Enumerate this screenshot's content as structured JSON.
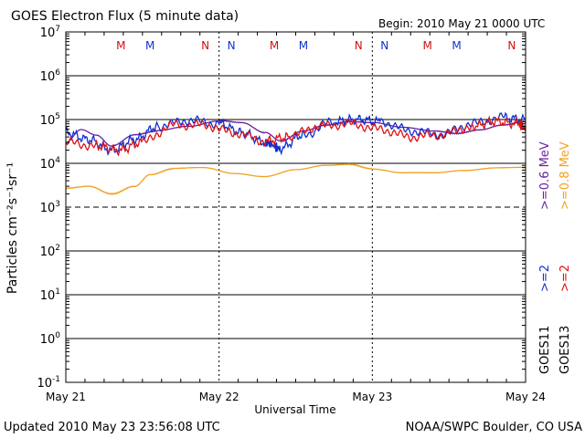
{
  "chart_data": {
    "type": "line",
    "title": "GOES Electron Flux (5 minute data)",
    "begin_label": "Begin: 2010 May 21 0000 UTC",
    "xlabel": "Universal Time",
    "ylabel": "Particles cm⁻²s⁻¹sr⁻¹",
    "yscale": "log",
    "ylim": [
      0.1,
      10000000
    ],
    "xlim_days": [
      0,
      3
    ],
    "x_ticks": [
      {
        "day": 0,
        "label": "May 21"
      },
      {
        "day": 1,
        "label": "May 22"
      },
      {
        "day": 2,
        "label": "May 23"
      },
      {
        "day": 3,
        "label": "May 24"
      }
    ],
    "y_ticks": [
      {
        "exp": 7,
        "base": "10",
        "sup": "7"
      },
      {
        "exp": 6,
        "base": "10",
        "sup": "6"
      },
      {
        "exp": 5,
        "base": "10",
        "sup": "5"
      },
      {
        "exp": 4,
        "base": "10",
        "sup": "4"
      },
      {
        "exp": 3,
        "base": "10",
        "sup": "3"
      },
      {
        "exp": 2,
        "base": "10",
        "sup": "2"
      },
      {
        "exp": 1,
        "base": "10",
        "sup": "1"
      },
      {
        "exp": 0,
        "base": "10",
        "sup": "0"
      },
      {
        "exp": -1,
        "base": "10",
        "sup": "-1"
      }
    ],
    "markers": [
      {
        "day": 0.36,
        "label": "M",
        "color": "#d01010"
      },
      {
        "day": 0.55,
        "label": "M",
        "color": "#1030d0"
      },
      {
        "day": 0.91,
        "label": "N",
        "color": "#d01010"
      },
      {
        "day": 1.08,
        "label": "N",
        "color": "#1030d0"
      },
      {
        "day": 1.36,
        "label": "M",
        "color": "#d01010"
      },
      {
        "day": 1.55,
        "label": "M",
        "color": "#1030d0"
      },
      {
        "day": 1.91,
        "label": "N",
        "color": "#d01010"
      },
      {
        "day": 2.08,
        "label": "N",
        "color": "#1030d0"
      },
      {
        "day": 2.36,
        "label": "M",
        "color": "#d01010"
      },
      {
        "day": 2.55,
        "label": "M",
        "color": "#1030d0"
      },
      {
        "day": 2.91,
        "label": "N",
        "color": "#d01010"
      },
      {
        "day": 3.08,
        "label": "N",
        "color": "#1030d0"
      }
    ],
    "series": [
      {
        "name": "GOES11 >=0.6 MeV",
        "color": "#6a1fa0",
        "points": [
          [
            0,
            30000
          ],
          [
            0.1,
            60000
          ],
          [
            0.2,
            45000
          ],
          [
            0.3,
            25000
          ],
          [
            0.45,
            45000
          ],
          [
            0.6,
            55000
          ],
          [
            0.8,
            70000
          ],
          [
            1.0,
            95000
          ],
          [
            1.15,
            85000
          ],
          [
            1.3,
            50000
          ],
          [
            1.4,
            32000
          ],
          [
            1.55,
            55000
          ],
          [
            1.7,
            75000
          ],
          [
            1.85,
            90000
          ],
          [
            2.0,
            85000
          ],
          [
            2.2,
            65000
          ],
          [
            2.4,
            55000
          ],
          [
            2.55,
            48000
          ],
          [
            2.7,
            58000
          ],
          [
            2.85,
            75000
          ],
          [
            3.0,
            90000
          ]
        ]
      },
      {
        "name": "GOES13 >=0.8 MeV",
        "color": "#f0a020",
        "points": [
          [
            0,
            2700
          ],
          [
            0.15,
            3000
          ],
          [
            0.3,
            2000
          ],
          [
            0.45,
            3000
          ],
          [
            0.55,
            5500
          ],
          [
            0.7,
            7500
          ],
          [
            0.9,
            8000
          ],
          [
            1.1,
            6000
          ],
          [
            1.3,
            5000
          ],
          [
            1.5,
            7000
          ],
          [
            1.7,
            9000
          ],
          [
            1.85,
            9500
          ],
          [
            2.0,
            7500
          ],
          [
            2.2,
            6000
          ],
          [
            2.4,
            6000
          ],
          [
            2.6,
            7000
          ],
          [
            2.8,
            8000
          ],
          [
            3.0,
            8000
          ]
        ]
      },
      {
        "name": "GOES11 >=2 MeV",
        "color": "#1030d0",
        "points": [
          [
            0,
            50000
          ],
          [
            0.15,
            35000
          ],
          [
            0.3,
            20000
          ],
          [
            0.45,
            35000
          ],
          [
            0.6,
            70000
          ],
          [
            0.8,
            95000
          ],
          [
            1.0,
            80000
          ],
          [
            1.15,
            50000
          ],
          [
            1.3,
            30000
          ],
          [
            1.4,
            22000
          ],
          [
            1.55,
            45000
          ],
          [
            1.75,
            90000
          ],
          [
            1.9,
            100000
          ],
          [
            2.05,
            90000
          ],
          [
            2.25,
            55000
          ],
          [
            2.45,
            45000
          ],
          [
            2.65,
            80000
          ],
          [
            2.85,
            110000
          ],
          [
            3.0,
            100000
          ]
        ]
      },
      {
        "name": "GOES13 >=2 MeV",
        "color": "#e01010",
        "points": [
          [
            0,
            30000
          ],
          [
            0.2,
            25000
          ],
          [
            0.35,
            20000
          ],
          [
            0.5,
            30000
          ],
          [
            0.7,
            75000
          ],
          [
            0.9,
            75000
          ],
          [
            1.1,
            50000
          ],
          [
            1.3,
            32000
          ],
          [
            1.45,
            40000
          ],
          [
            1.65,
            70000
          ],
          [
            1.85,
            80000
          ],
          [
            2.05,
            60000
          ],
          [
            2.25,
            40000
          ],
          [
            2.45,
            45000
          ],
          [
            2.65,
            70000
          ],
          [
            2.8,
            90000
          ],
          [
            2.95,
            80000
          ],
          [
            3.0,
            65000
          ]
        ]
      }
    ],
    "legend": {
      "placement": "right",
      "items": [
        {
          "label": ">=0.6 MeV",
          "color": "#6a1fa0"
        },
        {
          "label": ">=0.8 MeV",
          "color": "#f0a020"
        },
        {
          "label": ">=2",
          "color": "#1030d0"
        },
        {
          "label": ">=2",
          "color": "#e01010"
        },
        {
          "label": "GOES11",
          "color": "#000000"
        },
        {
          "label": "GOES13",
          "color": "#000000"
        }
      ]
    },
    "grid": true
  },
  "footer": {
    "updated": "Updated 2010 May 23 23:56:08 UTC",
    "source": "NOAA/SWPC Boulder, CO USA"
  }
}
